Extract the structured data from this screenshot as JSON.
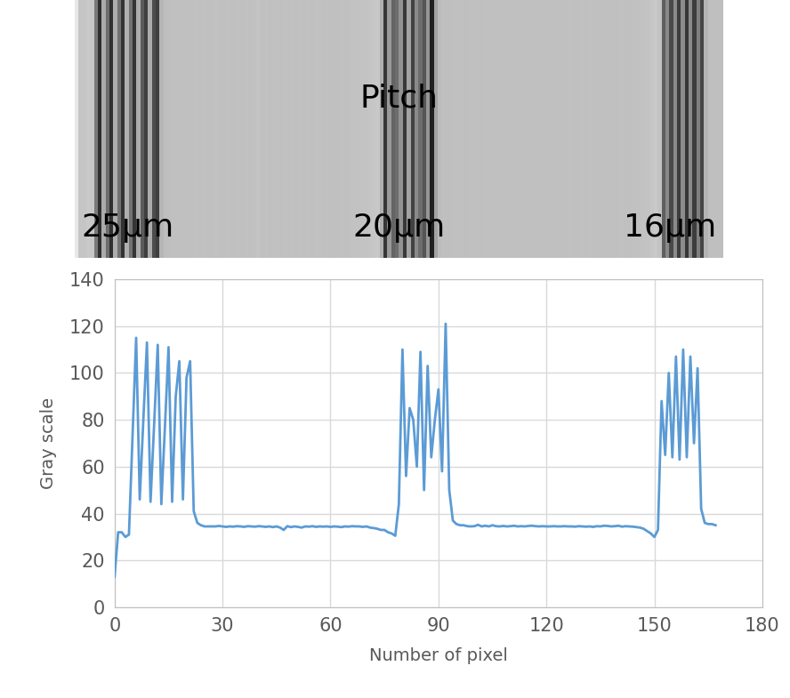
{
  "chart_data": {
    "type": "line",
    "x_label": "Number of pixel",
    "y_label": "Gray scale",
    "annotations": [
      "Pitch",
      "25μm",
      "20μm",
      "16μm"
    ],
    "color": "#5b9bd5",
    "grid": true,
    "xlim": [
      0,
      180
    ],
    "xticks": [
      0,
      30,
      60,
      90,
      120,
      150,
      180
    ],
    "ylim": [
      0,
      140
    ],
    "yticks": [
      0,
      20,
      40,
      60,
      80,
      100,
      120,
      140
    ],
    "x": [
      0,
      1,
      2,
      3,
      4,
      5,
      6,
      7,
      8,
      9,
      10,
      11,
      12,
      13,
      14,
      15,
      16,
      17,
      18,
      19,
      20,
      21,
      22,
      23,
      24,
      25,
      26,
      27,
      28,
      29,
      30,
      31,
      32,
      33,
      34,
      35,
      36,
      37,
      38,
      39,
      40,
      41,
      42,
      43,
      44,
      45,
      46,
      47,
      48,
      49,
      50,
      51,
      52,
      53,
      54,
      55,
      56,
      57,
      58,
      59,
      60,
      61,
      62,
      63,
      64,
      65,
      66,
      67,
      68,
      69,
      70,
      71,
      72,
      73,
      74,
      75,
      76,
      77,
      78,
      79,
      80,
      81,
      82,
      83,
      84,
      85,
      86,
      87,
      88,
      89,
      90,
      91,
      92,
      93,
      94,
      95,
      96,
      97,
      98,
      99,
      100,
      101,
      102,
      103,
      104,
      105,
      106,
      107,
      108,
      109,
      110,
      111,
      112,
      113,
      114,
      115,
      116,
      117,
      118,
      119,
      120,
      121,
      122,
      123,
      124,
      125,
      126,
      127,
      128,
      129,
      130,
      131,
      132,
      133,
      134,
      135,
      136,
      137,
      138,
      139,
      140,
      141,
      142,
      143,
      144,
      145,
      146,
      147,
      148,
      149,
      150,
      151,
      152,
      153,
      154,
      155,
      156,
      157,
      158,
      159,
      160,
      161,
      162,
      163,
      164,
      165,
      166,
      167
    ],
    "values": [
      13,
      32,
      32,
      30,
      31,
      73,
      115,
      46,
      80,
      113,
      45,
      78,
      112,
      44,
      77,
      111,
      45,
      90,
      105,
      46,
      98,
      105,
      41,
      36,
      35,
      34.5,
      34.5,
      34.5,
      34.5,
      34.7,
      34.5,
      34.3,
      34.5,
      34.4,
      34.6,
      34.5,
      34.3,
      34.6,
      34.5,
      34.4,
      34.6,
      34.5,
      34.3,
      34.5,
      34.2,
      34.5,
      34.0,
      33.0,
      34.6,
      34.2,
      34.5,
      34.3,
      34.0,
      34.5,
      34.4,
      34.6,
      34.3,
      34.5,
      34.4,
      34.5,
      34.3,
      34.5,
      34.4,
      34.2,
      34.5,
      34.4,
      34.6,
      34.5,
      34.5,
      34.3,
      34.5,
      34.0,
      33.8,
      33.5,
      33,
      33,
      32,
      31.5,
      30.5,
      44,
      110,
      56,
      85,
      80,
      60,
      109,
      50,
      103,
      64,
      80,
      93,
      58,
      121,
      50,
      37,
      35.5,
      35,
      35.0,
      34.6,
      34.5,
      34.6,
      35.2,
      34.5,
      34.8,
      34.5,
      35.0,
      34.6,
      34.5,
      34.7,
      34.5,
      34.6,
      34.8,
      34.5,
      34.6,
      34.5,
      34.7,
      34.8,
      34.6,
      34.5,
      34.6,
      34.5,
      34.5,
      34.6,
      34.5,
      34.5,
      34.6,
      34.5,
      34.5,
      34.4,
      34.6,
      34.5,
      34.4,
      34.5,
      34.3,
      34.6,
      34.5,
      34.8,
      34.7,
      34.5,
      34.6,
      34.8,
      34.4,
      34.6,
      34.5,
      34.4,
      34.2,
      34,
      33.5,
      32.5,
      31.5,
      30,
      33,
      88,
      65,
      100,
      64,
      107,
      63,
      110,
      64,
      107,
      70,
      102,
      42,
      36,
      35.5,
      35.5,
      35
    ]
  }
}
